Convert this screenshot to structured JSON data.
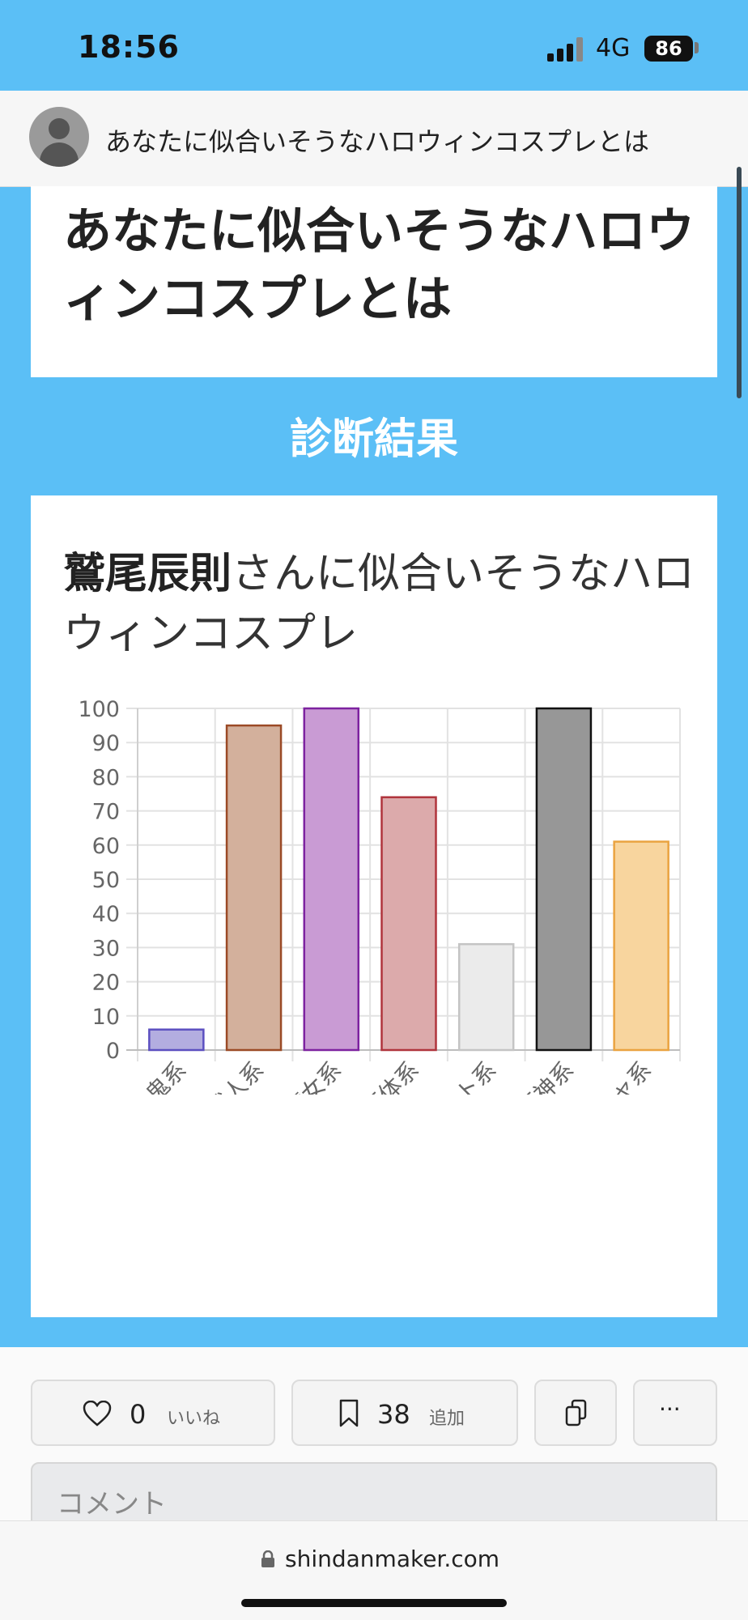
{
  "status": {
    "time": "18:56",
    "network": "4G",
    "battery": "86"
  },
  "header": {
    "title": "あなたに似合いそうなハロウィンコスプレとは"
  },
  "page": {
    "title": "あなたに似合いそうなハロウィンコスプレとは",
    "result_heading": "診断結果"
  },
  "result": {
    "name": "鷲尾辰則",
    "text": "さんに似合いそうなハロウィンコスプレ"
  },
  "chart_data": {
    "type": "bar",
    "categories": [
      "吸血鬼系",
      "獣人系",
      "魔女系",
      "動く死体系",
      "骨・ゴースト系",
      "悪魔・死神系",
      "カボチャ系"
    ],
    "values": [
      6,
      95,
      100,
      74,
      31,
      100,
      61
    ],
    "ylim": [
      0,
      100
    ],
    "yticks": [
      0,
      10,
      20,
      30,
      40,
      50,
      60,
      70,
      80,
      90,
      100
    ],
    "colors": [
      {
        "fill": "#b3ade0",
        "stroke": "#5b4fc0"
      },
      {
        "fill": "#d3b09c",
        "stroke": "#9b4a26"
      },
      {
        "fill": "#c99bd4",
        "stroke": "#7d22a0"
      },
      {
        "fill": "#dcaaab",
        "stroke": "#b0343c"
      },
      {
        "fill": "#ebebeb",
        "stroke": "#c4c4c4"
      },
      {
        "fill": "#979797",
        "stroke": "#111111"
      },
      {
        "fill": "#f8d59e",
        "stroke": "#eaa340"
      }
    ],
    "grid": true
  },
  "actions": {
    "like_count": "0",
    "like_label": "いいね",
    "bookmark_count": "38",
    "bookmark_label": "追加",
    "more_label": "···",
    "comment_placeholder": "コメント"
  },
  "browser": {
    "url": "shindanmaker.com"
  }
}
